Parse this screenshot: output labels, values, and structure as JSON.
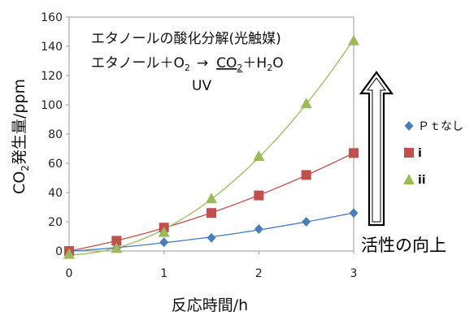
{
  "chart_data": {
    "type": "scatter",
    "title": "",
    "xlabel": "反応時間/h",
    "ylabel_parts": [
      "CO",
      "2",
      "発生量/ppm"
    ],
    "xlim": [
      0,
      3
    ],
    "ylim": [
      0,
      160
    ],
    "xticks": [
      "0",
      "1",
      "2",
      "3"
    ],
    "yticks": [
      "0",
      "20",
      "40",
      "60",
      "80",
      "100",
      "120",
      "140",
      "160"
    ],
    "grid": false,
    "legend_position": "right",
    "series": [
      {
        "name": "Ｐｔなし",
        "marker": "diamond",
        "color": "#4a7ebb",
        "x": [
          0,
          0.5,
          1,
          1.5,
          2,
          2.5,
          3
        ],
        "y": [
          0,
          2,
          6,
          9,
          15,
          20,
          26
        ]
      },
      {
        "name": "i",
        "marker": "square",
        "color": "#c0504d",
        "x": [
          0,
          0.5,
          1,
          1.5,
          2,
          2.5,
          3
        ],
        "y": [
          0,
          7,
          16,
          26,
          38,
          52,
          67
        ]
      },
      {
        "name": "ii",
        "marker": "triangle",
        "color": "#9bbb59",
        "x": [
          0,
          0.5,
          1,
          1.5,
          2,
          2.5,
          3
        ],
        "y": [
          -2,
          2,
          13,
          36,
          65,
          101,
          144
        ]
      }
    ],
    "annotations": {
      "line1": "エタノールの酸化分解(光触媒)",
      "line2_a": "エタノール＋O",
      "line2_a_sub": "2",
      "line2_arrow": "→",
      "line2_b": "CO",
      "line2_b_sub": "2",
      "line2_c": "＋H",
      "line2_c_sub": "2",
      "line2_d": "O",
      "uv": "UV",
      "uv_color": "#7030a0",
      "arrow_label": "活性の向上"
    }
  }
}
